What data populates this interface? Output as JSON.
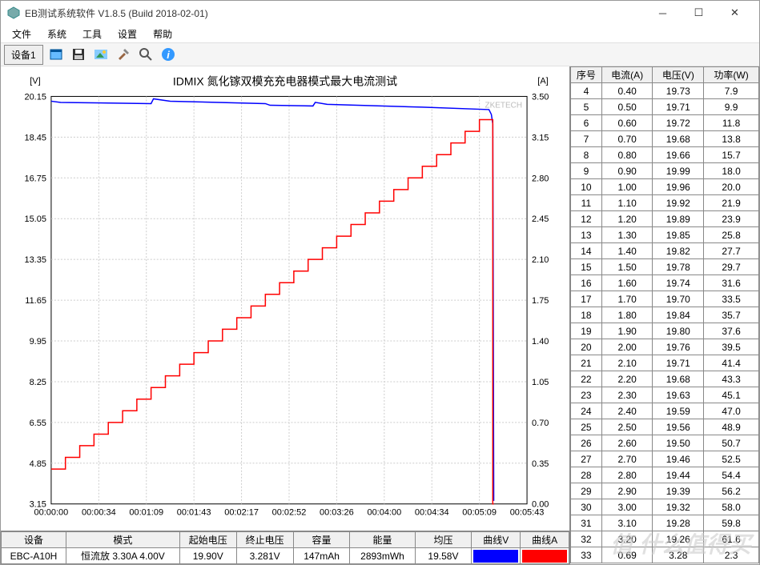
{
  "window": {
    "title": "EB测试系统软件 V1.8.5 (Build 2018-02-01)"
  },
  "menu": {
    "items": [
      "文件",
      "系统",
      "工具",
      "设置",
      "帮助"
    ]
  },
  "toolbar": {
    "tab_label": "设备1",
    "icons": [
      "window",
      "save",
      "picture",
      "tools",
      "zoom",
      "info"
    ]
  },
  "chart": {
    "title": "IDMIX 氮化镓双模充充电器模式最大电流测试",
    "watermark": "ZKETECH",
    "left_axis": {
      "unit": "[V]",
      "min": 3.15,
      "max": 20.15,
      "ticks": [
        3.15,
        4.85,
        6.55,
        8.25,
        9.95,
        11.65,
        13.35,
        15.05,
        16.75,
        18.45,
        20.15
      ]
    },
    "right_axis": {
      "unit": "[A]",
      "min": 0.0,
      "max": 3.5,
      "ticks": [
        0.0,
        0.35,
        0.7,
        1.05,
        1.4,
        1.75,
        2.1,
        2.45,
        2.8,
        3.15,
        3.5
      ]
    },
    "x_axis": {
      "ticks": [
        "00:00:00",
        "00:00:34",
        "00:01:09",
        "00:01:43",
        "00:02:17",
        "00:02:52",
        "00:03:26",
        "00:04:00",
        "00:04:34",
        "00:05:09",
        "00:05:43"
      ]
    },
    "grid_color": "#cccccc",
    "series": [
      {
        "name": "voltage",
        "color": "#0000ff",
        "points": [
          [
            0,
            19.95
          ],
          [
            0.02,
            19.9
          ],
          [
            0.21,
            19.85
          ],
          [
            0.215,
            20.05
          ],
          [
            0.25,
            19.95
          ],
          [
            0.45,
            19.85
          ],
          [
            0.46,
            19.78
          ],
          [
            0.55,
            19.75
          ],
          [
            0.555,
            19.9
          ],
          [
            0.58,
            19.82
          ],
          [
            0.78,
            19.7
          ],
          [
            0.92,
            19.6
          ],
          [
            0.925,
            19.4
          ],
          [
            0.928,
            19.0
          ],
          [
            0.93,
            3.28
          ]
        ]
      },
      {
        "name": "current",
        "color": "#ff0000",
        "points": [
          [
            0,
            0.3
          ],
          [
            0.03,
            0.3
          ],
          [
            0.03,
            0.4
          ],
          [
            0.06,
            0.4
          ],
          [
            0.06,
            0.5
          ],
          [
            0.09,
            0.5
          ],
          [
            0.09,
            0.6
          ],
          [
            0.12,
            0.6
          ],
          [
            0.12,
            0.7
          ],
          [
            0.15,
            0.7
          ],
          [
            0.15,
            0.8
          ],
          [
            0.18,
            0.8
          ],
          [
            0.18,
            0.9
          ],
          [
            0.21,
            0.9
          ],
          [
            0.21,
            1.0
          ],
          [
            0.24,
            1.0
          ],
          [
            0.24,
            1.1
          ],
          [
            0.27,
            1.1
          ],
          [
            0.27,
            1.2
          ],
          [
            0.3,
            1.2
          ],
          [
            0.3,
            1.3
          ],
          [
            0.33,
            1.3
          ],
          [
            0.33,
            1.4
          ],
          [
            0.36,
            1.4
          ],
          [
            0.36,
            1.5
          ],
          [
            0.39,
            1.5
          ],
          [
            0.39,
            1.6
          ],
          [
            0.42,
            1.6
          ],
          [
            0.42,
            1.7
          ],
          [
            0.45,
            1.7
          ],
          [
            0.45,
            1.8
          ],
          [
            0.48,
            1.8
          ],
          [
            0.48,
            1.9
          ],
          [
            0.51,
            1.9
          ],
          [
            0.51,
            2.0
          ],
          [
            0.54,
            2.0
          ],
          [
            0.54,
            2.1
          ],
          [
            0.57,
            2.1
          ],
          [
            0.57,
            2.2
          ],
          [
            0.6,
            2.2
          ],
          [
            0.6,
            2.3
          ],
          [
            0.63,
            2.3
          ],
          [
            0.63,
            2.4
          ],
          [
            0.66,
            2.4
          ],
          [
            0.66,
            2.5
          ],
          [
            0.69,
            2.5
          ],
          [
            0.69,
            2.6
          ],
          [
            0.72,
            2.6
          ],
          [
            0.72,
            2.7
          ],
          [
            0.75,
            2.7
          ],
          [
            0.75,
            2.8
          ],
          [
            0.78,
            2.8
          ],
          [
            0.78,
            2.9
          ],
          [
            0.81,
            2.9
          ],
          [
            0.81,
            3.0
          ],
          [
            0.84,
            3.0
          ],
          [
            0.84,
            3.1
          ],
          [
            0.87,
            3.1
          ],
          [
            0.87,
            3.2
          ],
          [
            0.9,
            3.2
          ],
          [
            0.9,
            3.3
          ],
          [
            0.928,
            3.3
          ],
          [
            0.928,
            0.0
          ],
          [
            0.93,
            0.0
          ]
        ]
      }
    ]
  },
  "status_table": {
    "headers": [
      "设备",
      "模式",
      "起始电压",
      "终止电压",
      "容量",
      "能量",
      "均压",
      "曲线V",
      "曲线A"
    ],
    "row": {
      "device": "EBC-A10H",
      "mode": "恒流放  3.30A  4.00V",
      "start_v": "19.90V",
      "end_v": "3.281V",
      "capacity": "147mAh",
      "energy": "2893mWh",
      "avg_v": "19.58V",
      "curve_v_color": "#0000ff",
      "curve_a_color": "#ff0000"
    }
  },
  "data_table": {
    "headers": [
      "序号",
      "电流(A)",
      "电压(V)",
      "功率(W)"
    ],
    "rows": [
      [
        4,
        "0.40",
        "19.73",
        "7.9"
      ],
      [
        5,
        "0.50",
        "19.71",
        "9.9"
      ],
      [
        6,
        "0.60",
        "19.72",
        "11.8"
      ],
      [
        7,
        "0.70",
        "19.68",
        "13.8"
      ],
      [
        8,
        "0.80",
        "19.66",
        "15.7"
      ],
      [
        9,
        "0.90",
        "19.99",
        "18.0"
      ],
      [
        10,
        "1.00",
        "19.96",
        "20.0"
      ],
      [
        11,
        "1.10",
        "19.92",
        "21.9"
      ],
      [
        12,
        "1.20",
        "19.89",
        "23.9"
      ],
      [
        13,
        "1.30",
        "19.85",
        "25.8"
      ],
      [
        14,
        "1.40",
        "19.82",
        "27.7"
      ],
      [
        15,
        "1.50",
        "19.78",
        "29.7"
      ],
      [
        16,
        "1.60",
        "19.74",
        "31.6"
      ],
      [
        17,
        "1.70",
        "19.70",
        "33.5"
      ],
      [
        18,
        "1.80",
        "19.84",
        "35.7"
      ],
      [
        19,
        "1.90",
        "19.80",
        "37.6"
      ],
      [
        20,
        "2.00",
        "19.76",
        "39.5"
      ],
      [
        21,
        "2.10",
        "19.71",
        "41.4"
      ],
      [
        22,
        "2.20",
        "19.68",
        "43.3"
      ],
      [
        23,
        "2.30",
        "19.63",
        "45.1"
      ],
      [
        24,
        "2.40",
        "19.59",
        "47.0"
      ],
      [
        25,
        "2.50",
        "19.56",
        "48.9"
      ],
      [
        26,
        "2.60",
        "19.50",
        "50.7"
      ],
      [
        27,
        "2.70",
        "19.46",
        "52.5"
      ],
      [
        28,
        "2.80",
        "19.44",
        "54.4"
      ],
      [
        29,
        "2.90",
        "19.39",
        "56.2"
      ],
      [
        30,
        "3.00",
        "19.32",
        "58.0"
      ],
      [
        31,
        "3.10",
        "19.28",
        "59.8"
      ],
      [
        32,
        "3.20",
        "19.26",
        "61.6"
      ],
      [
        33,
        "0.69",
        "3.28",
        "2.3"
      ]
    ]
  },
  "bottom_watermark": "值 什么值得买"
}
